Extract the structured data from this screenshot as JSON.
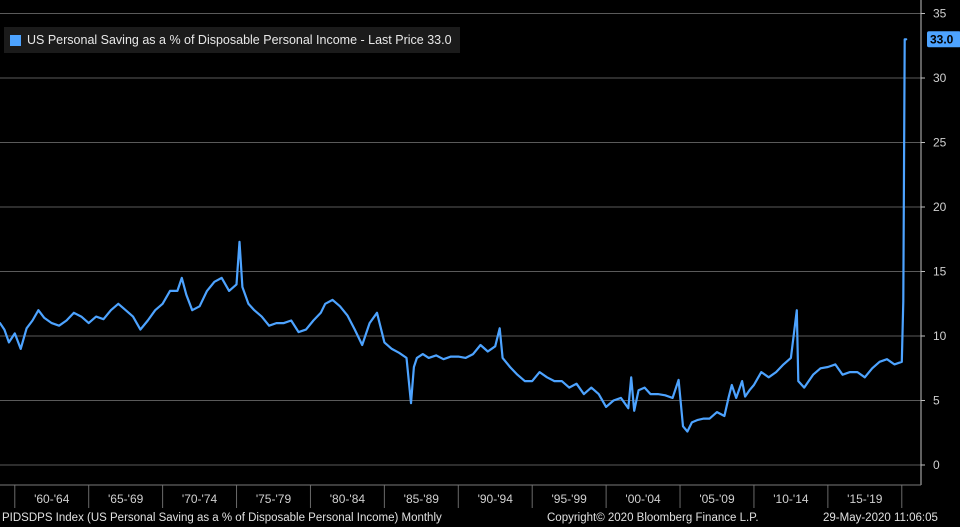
{
  "legend": {
    "label": "US Personal Saving as a % of Disposable Personal Income - Last Price 33.0",
    "color": "#4da3ff"
  },
  "last_value_label": "33.0",
  "footer": {
    "left": "PIDSDPS Index (US Personal Saving as a % of Disposable Personal Income)  Monthly",
    "center": "Copyright© 2020 Bloomberg Finance L.P.",
    "right": "29-May-2020 11:06:05"
  },
  "colors": {
    "background": "#000000",
    "line": "#4da3ff",
    "grid": "#5a5a5a"
  },
  "chart_data": {
    "type": "line",
    "title": "",
    "ylim": [
      0,
      35
    ],
    "y_ticks": [
      0,
      5,
      10,
      15,
      20,
      25,
      30,
      35
    ],
    "x_range": [
      1959.0,
      2021.3
    ],
    "x_tick_labels": [
      "'60-'64",
      "'65-'69",
      "'70-'74",
      "'75-'79",
      "'80-'84",
      "'85-'89",
      "'90-'94",
      "'95-'99",
      "'00-'04",
      "'05-'09",
      "'10-'14",
      "'15-'19"
    ],
    "x_tick_bounds": [
      1960,
      1965,
      1970,
      1975,
      1980,
      1985,
      1990,
      1995,
      2000,
      2005,
      2010,
      2015,
      2020
    ],
    "grid": true,
    "legend_position": "top-left",
    "series": [
      {
        "name": "US Personal Saving as a % of Disposable Personal Income",
        "x": [
          1959.0,
          1959.3,
          1959.6,
          1960.0,
          1960.4,
          1960.8,
          1961.2,
          1961.6,
          1962.0,
          1962.5,
          1963.0,
          1963.5,
          1964.0,
          1964.5,
          1965.0,
          1965.5,
          1966.0,
          1966.5,
          1967.0,
          1967.5,
          1968.0,
          1968.5,
          1969.0,
          1969.5,
          1970.0,
          1970.5,
          1971.0,
          1971.3,
          1971.6,
          1972.0,
          1972.5,
          1973.0,
          1973.5,
          1974.0,
          1974.5,
          1975.0,
          1975.2,
          1975.4,
          1975.8,
          1976.2,
          1976.7,
          1977.2,
          1977.7,
          1978.2,
          1978.7,
          1979.2,
          1979.7,
          1980.2,
          1980.7,
          1981.0,
          1981.5,
          1982.0,
          1982.5,
          1983.0,
          1983.5,
          1984.0,
          1984.5,
          1985.0,
          1985.5,
          1986.0,
          1986.5,
          1986.8,
          1987.0,
          1987.2,
          1987.6,
          1988.0,
          1988.5,
          1989.0,
          1989.5,
          1990.0,
          1990.5,
          1991.0,
          1991.5,
          1992.0,
          1992.5,
          1992.8,
          1993.0,
          1993.5,
          1994.0,
          1994.5,
          1995.0,
          1995.5,
          1996.0,
          1996.5,
          1997.0,
          1997.5,
          1998.0,
          1998.5,
          1999.0,
          1999.5,
          2000.0,
          2000.5,
          2001.0,
          2001.5,
          2001.7,
          2001.9,
          2002.2,
          2002.6,
          2003.0,
          2003.5,
          2004.0,
          2004.5,
          2004.9,
          2005.2,
          2005.5,
          2005.8,
          2006.2,
          2006.6,
          2007.0,
          2007.5,
          2008.0,
          2008.3,
          2008.5,
          2008.8,
          2009.2,
          2009.4,
          2009.7,
          2010.0,
          2010.5,
          2011.0,
          2011.5,
          2012.0,
          2012.5,
          2012.9,
          2013.0,
          2013.4,
          2014.0,
          2014.5,
          2015.0,
          2015.5,
          2016.0,
          2016.5,
          2017.0,
          2017.5,
          2018.0,
          2018.5,
          2019.0,
          2019.5,
          2020.0,
          2020.1,
          2020.2,
          2020.3
        ],
        "values": [
          11.0,
          10.5,
          9.5,
          10.2,
          9.0,
          10.6,
          11.2,
          12.0,
          11.4,
          11.0,
          10.8,
          11.2,
          11.8,
          11.5,
          11.0,
          11.5,
          11.3,
          12.0,
          12.5,
          12.0,
          11.5,
          10.5,
          11.2,
          12.0,
          12.5,
          13.5,
          13.5,
          14.5,
          13.2,
          12.0,
          12.3,
          13.5,
          14.2,
          14.5,
          13.5,
          14.0,
          17.3,
          13.8,
          12.5,
          12.0,
          11.5,
          10.8,
          11.0,
          11.0,
          11.2,
          10.3,
          10.5,
          11.2,
          11.8,
          12.5,
          12.8,
          12.3,
          11.6,
          10.5,
          9.3,
          11.0,
          11.8,
          9.5,
          9.0,
          8.7,
          8.3,
          4.8,
          7.6,
          8.3,
          8.6,
          8.3,
          8.5,
          8.2,
          8.4,
          8.4,
          8.3,
          8.6,
          9.3,
          8.8,
          9.2,
          10.6,
          8.3,
          7.6,
          7.0,
          6.5,
          6.5,
          7.2,
          6.8,
          6.5,
          6.5,
          6.0,
          6.3,
          5.5,
          6.0,
          5.5,
          4.5,
          5.0,
          5.2,
          4.4,
          6.8,
          4.2,
          5.8,
          6.0,
          5.5,
          5.5,
          5.4,
          5.2,
          6.6,
          3.0,
          2.6,
          3.3,
          3.5,
          3.6,
          3.6,
          4.1,
          3.8,
          5.3,
          6.2,
          5.2,
          6.5,
          5.3,
          5.8,
          6.2,
          7.2,
          6.8,
          7.2,
          7.8,
          8.3,
          12.0,
          6.5,
          6.0,
          7.0,
          7.5,
          7.6,
          7.8,
          7.0,
          7.2,
          7.2,
          6.8,
          7.5,
          8.0,
          8.2,
          7.8,
          8.0,
          12.7,
          33.0,
          33.0
        ]
      }
    ]
  }
}
